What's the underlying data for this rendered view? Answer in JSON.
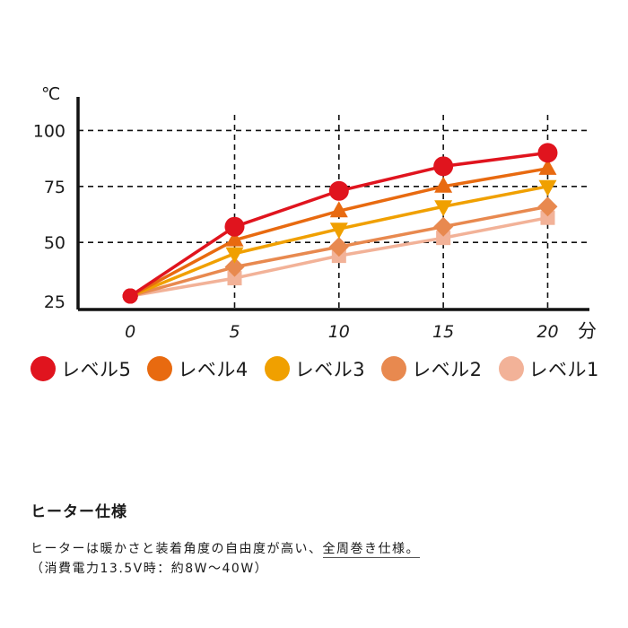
{
  "chart_data": {
    "type": "line",
    "yunit": "℃",
    "xunit": "分",
    "x": [
      0,
      5,
      10,
      15,
      20
    ],
    "x_tick_labels": [
      "0",
      "5",
      "10",
      "15",
      "20"
    ],
    "y_tick_labels": [
      "25",
      "50",
      "75",
      "100"
    ],
    "y_ticks": [
      25,
      50,
      75,
      100
    ],
    "ylim": [
      20,
      115
    ],
    "xlim": [
      -2.5,
      22
    ],
    "grid": true,
    "legend_position": "bottom",
    "series": [
      {
        "name": "レベル1",
        "values": [
          26,
          34,
          44,
          52,
          61
        ],
        "color": "#f2b298",
        "marker": "square"
      },
      {
        "name": "レベル2",
        "values": [
          26,
          39,
          48,
          57,
          66
        ],
        "color": "#e8894f",
        "marker": "diamond"
      },
      {
        "name": "レベル3",
        "values": [
          26,
          45,
          56,
          66,
          75
        ],
        "color": "#f0a000",
        "marker": "triangle-down"
      },
      {
        "name": "レベル4",
        "values": [
          26,
          51,
          64,
          75,
          83
        ],
        "color": "#e86a10",
        "marker": "triangle-up"
      },
      {
        "name": "レベル5",
        "values": [
          26,
          57,
          73,
          84,
          90
        ],
        "color": "#e0141e",
        "marker": "circle"
      }
    ]
  },
  "legend": {
    "items": [
      {
        "label": "レベル5",
        "color": "#e0141e"
      },
      {
        "label": "レベル4",
        "color": "#e86a10"
      },
      {
        "label": "レベル3",
        "color": "#f0a000"
      },
      {
        "label": "レベル2",
        "color": "#e8894f"
      },
      {
        "label": "レベル1",
        "color": "#f2b298"
      }
    ]
  },
  "spec": {
    "title": "ヒーター仕様",
    "line1_main": "ヒーターは暖かさと装着角度の自由度が高い、",
    "line1_underlined": "全周巻き仕様。",
    "line2": "（消費電力13.5V時：約8W〜40W）"
  }
}
